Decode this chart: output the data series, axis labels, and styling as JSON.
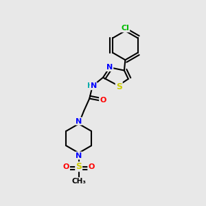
{
  "background_color": "#e8e8e8",
  "bond_color": "#000000",
  "bond_width": 1.5,
  "atom_colors": {
    "N": "#0000ff",
    "S": "#cccc00",
    "O": "#ff0000",
    "Cl": "#00bb00",
    "H": "#00aaaa",
    "C": "#000000"
  },
  "fig_width": 3.0,
  "fig_height": 3.0,
  "dpi": 100
}
